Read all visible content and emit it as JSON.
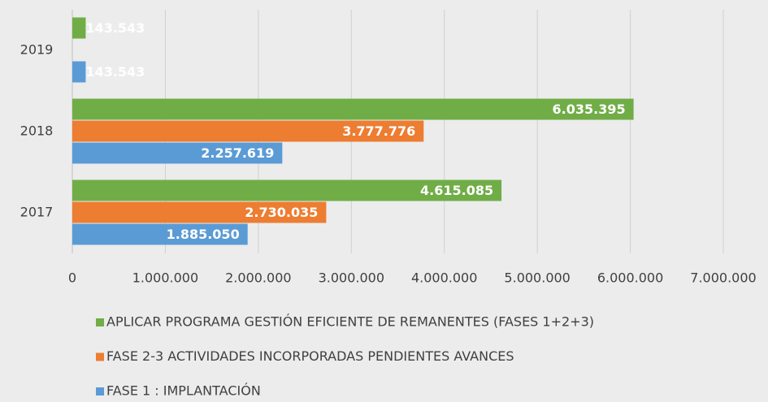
{
  "chart_data": {
    "type": "bar",
    "orientation": "horizontal",
    "categories": [
      "2017",
      "2018",
      "2019"
    ],
    "series": [
      {
        "name": "FASE 1 : IMPLANTACIÓN",
        "color": "#5b9bd5",
        "values": [
          1885050,
          2257619,
          143543
        ],
        "value_labels": [
          "1.885.050",
          "2.257.619",
          "143.543"
        ]
      },
      {
        "name": "FASE 2-3 ACTIVIDADES INCORPORADAS  PENDIENTES AVANCES",
        "color": "#ed7d31",
        "values": [
          2730035,
          3777776,
          null
        ],
        "value_labels": [
          "2.730.035",
          "3.777.776",
          null
        ]
      },
      {
        "name": "APLICAR PROGRAMA GESTIÓN EFICIENTE DE REMANENTES (FASES 1+2+3)",
        "color": "#70ad47",
        "values": [
          4615085,
          6035395,
          143543
        ],
        "value_labels": [
          "4.615.085",
          "6.035.395",
          "143.543"
        ]
      }
    ],
    "xlim": [
      0,
      7000000
    ],
    "xticks": [
      0,
      {
        "value": 1000000,
        "label": "1.000.000"
      },
      {
        "value": 2000000,
        "label": "2.000.000"
      },
      {
        "value": 3000000,
        "label": "3.000.000"
      },
      {
        "value": 4000000,
        "label": "4.000.000"
      },
      {
        "value": 5000000,
        "label": "5.000.000"
      },
      {
        "value": 6000000,
        "label": "6.000.000"
      },
      {
        "value": 7000000,
        "label": "7.000.000"
      }
    ],
    "grid": true,
    "legend": "bottom"
  }
}
